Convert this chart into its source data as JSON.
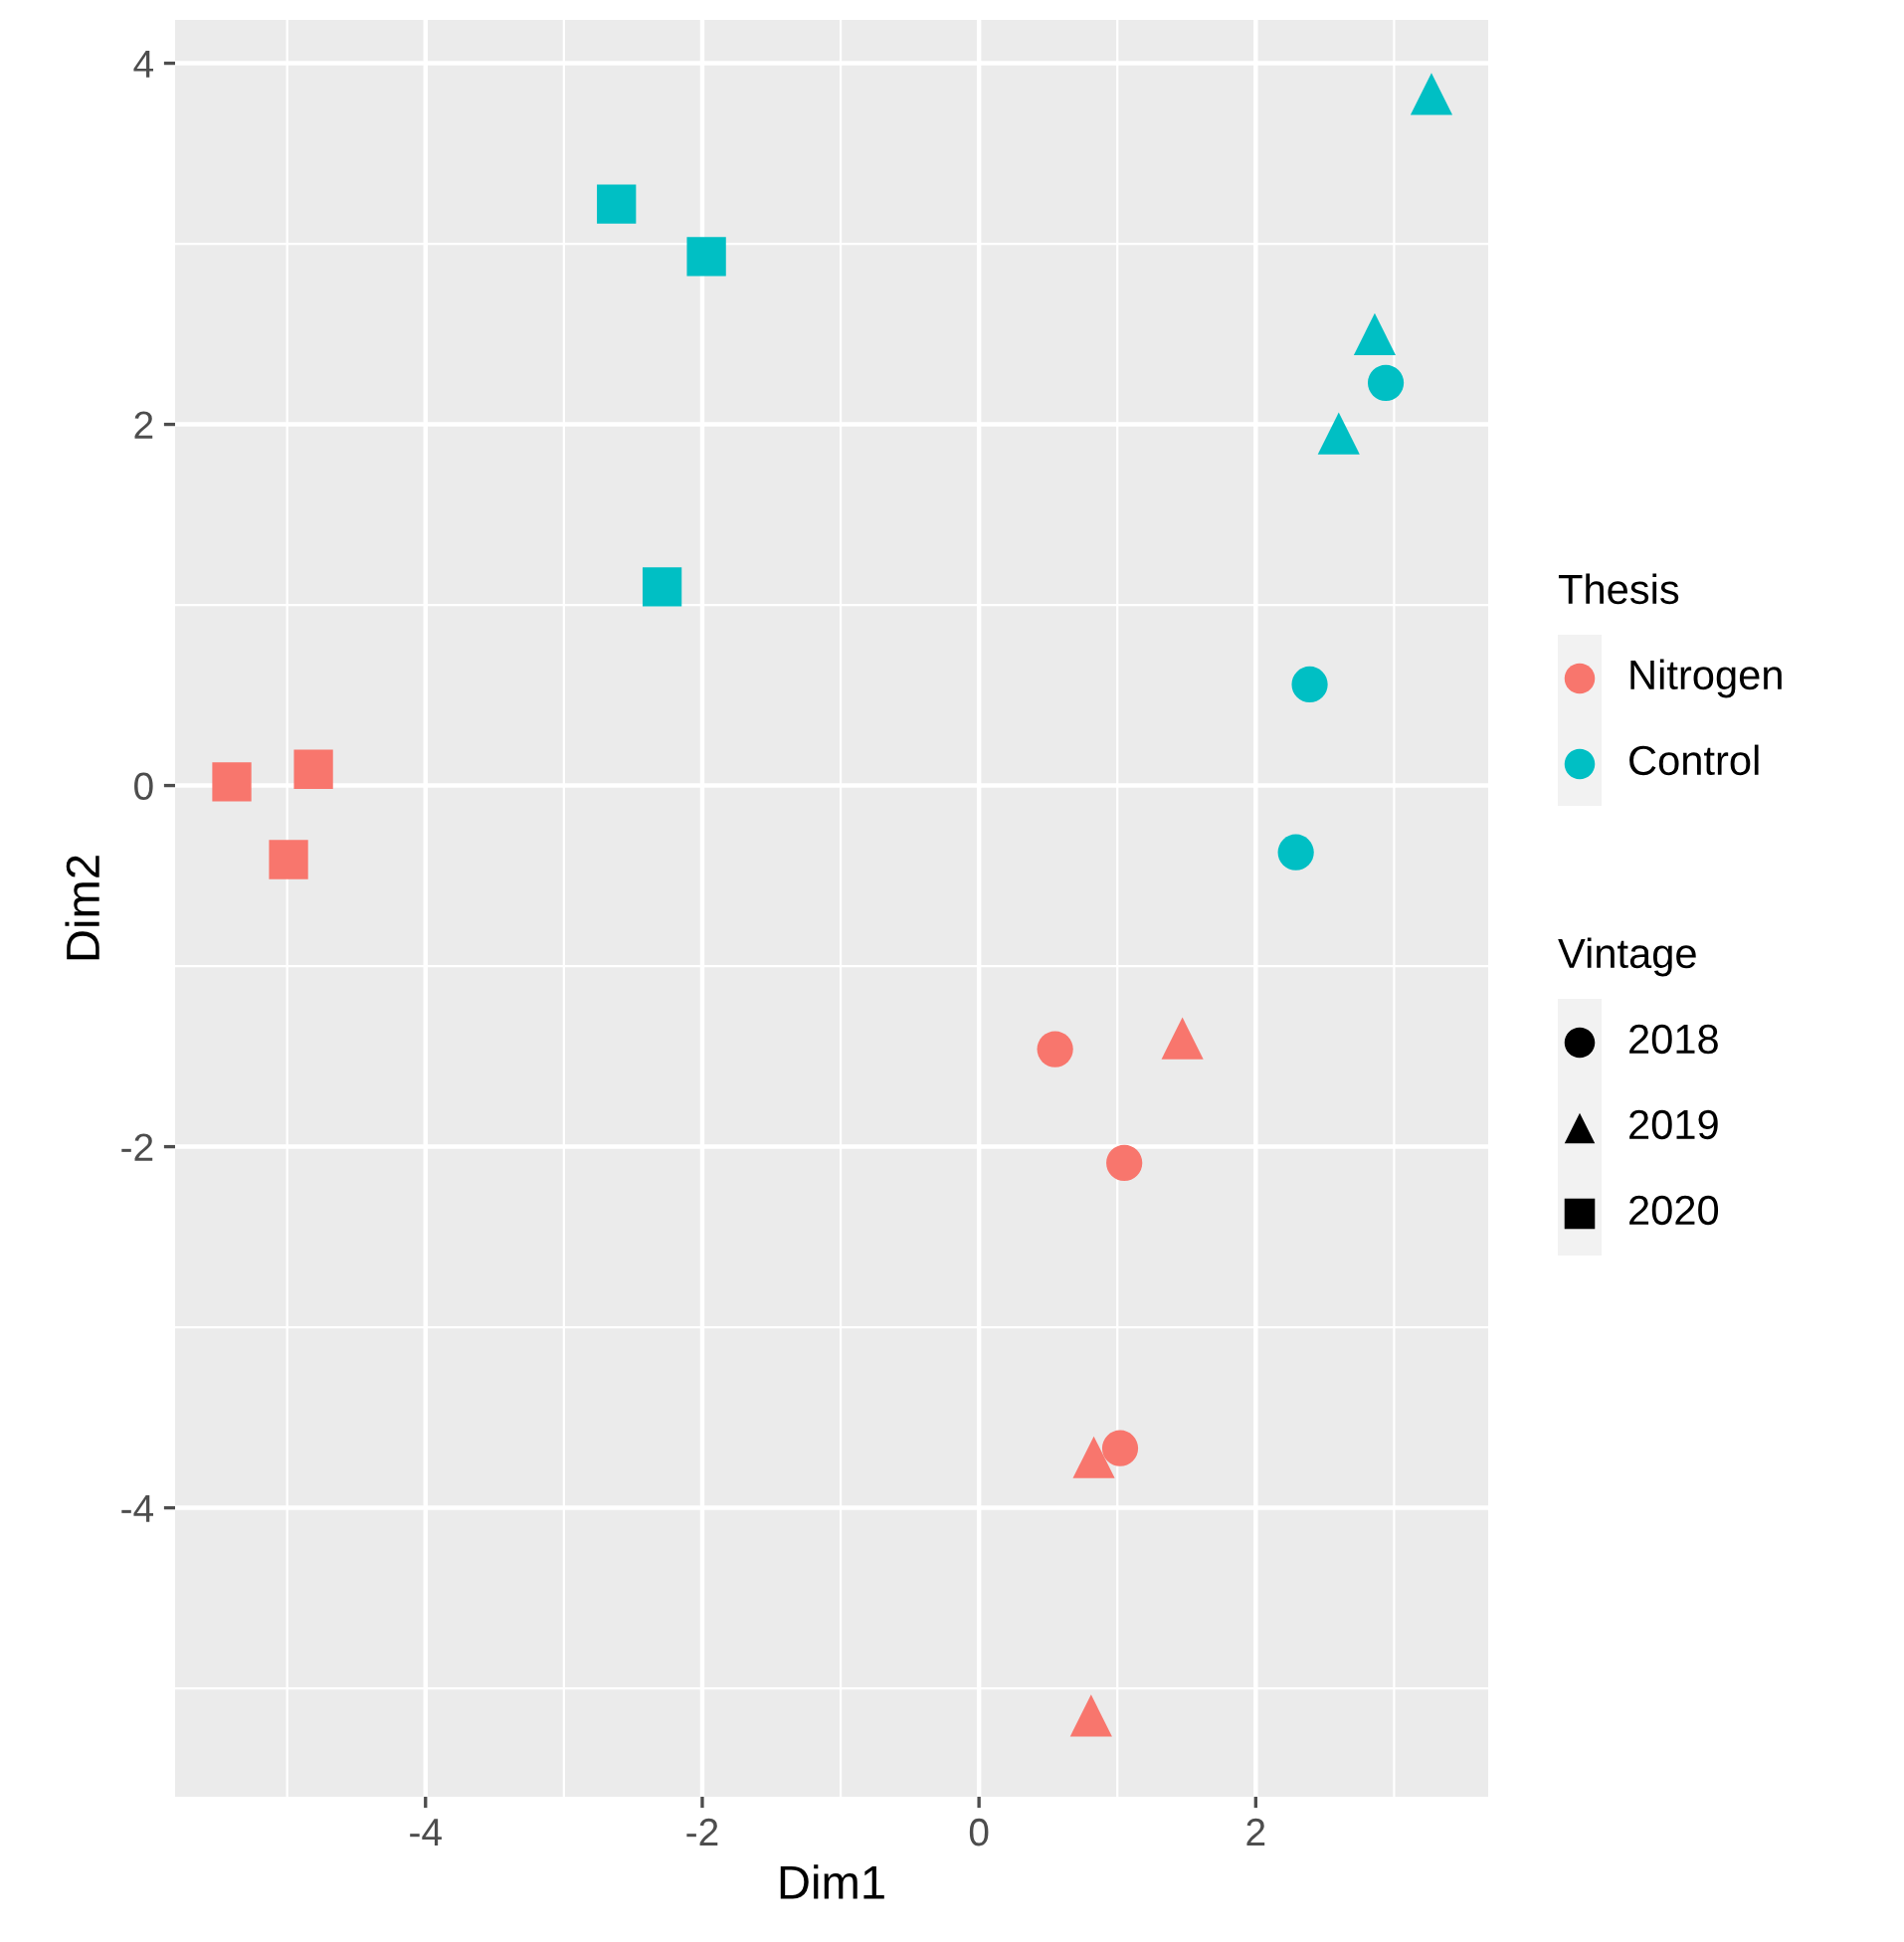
{
  "chart_data": {
    "type": "scatter",
    "xlabel": "Dim1",
    "ylabel": "Dim2",
    "xlim": [
      -5.81,
      3.68
    ],
    "xticks": [
      -4,
      -2,
      0,
      2
    ],
    "ylim": [
      -5.6,
      4.24
    ],
    "yticks": [
      -4,
      -2,
      0,
      2,
      4
    ],
    "grid": true,
    "annotations": [
      "Thesis",
      "Nitrogen",
      "Control",
      "Vintage",
      "2018",
      "2019",
      "2020"
    ],
    "series": [
      {
        "color": "#f8766d",
        "marker": "circle",
        "x": [
          0.55,
          1.05,
          1.02
        ],
        "values": [
          -1.46,
          -2.09,
          -3.67
        ]
      },
      {
        "color": "#f8766d",
        "marker": "triangle",
        "x": [
          1.47,
          0.83,
          0.81
        ],
        "values": [
          -1.4,
          -3.72,
          -5.15
        ]
      },
      {
        "color": "#f8766d",
        "marker": "square",
        "x": [
          -5.4,
          -4.81,
          -4.99
        ],
        "values": [
          0.02,
          0.09,
          -0.41
        ]
      },
      {
        "color": "#00bfc4",
        "marker": "circle",
        "x": [
          2.94,
          2.39,
          2.29
        ],
        "values": [
          2.23,
          0.56,
          -0.37
        ]
      },
      {
        "color": "#00bfc4",
        "marker": "triangle",
        "x": [
          3.27,
          2.86,
          2.6
        ],
        "values": [
          3.83,
          2.5,
          1.95
        ]
      },
      {
        "color": "#00bfc4",
        "marker": "square",
        "x": [
          -2.62,
          -1.97,
          -2.29
        ],
        "values": [
          3.22,
          2.93,
          1.1
        ]
      }
    ]
  }
}
